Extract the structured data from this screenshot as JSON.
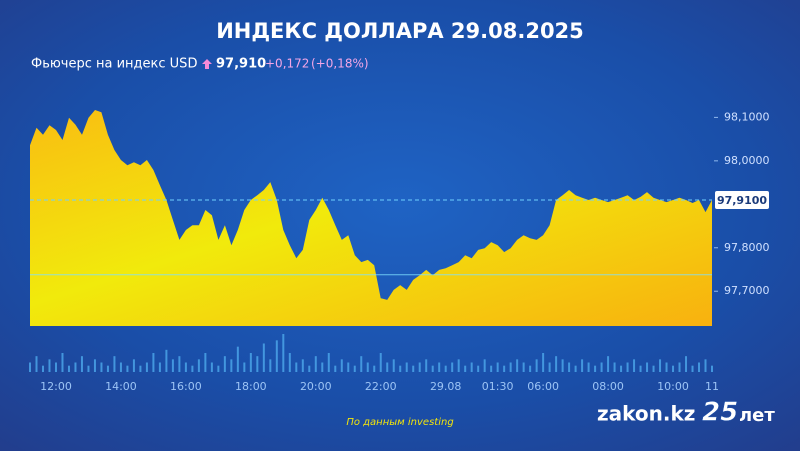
{
  "chart_data": {
    "type": "area",
    "title": "ИНДЕКС ДОЛЛАРА 29.08.2025",
    "subtitle": "Фьючерс на индекс USD",
    "price": "97,910",
    "change": "+0,172",
    "change_percent": "(+0,18%)",
    "source": "По данным investing",
    "brand": "zakon.kz",
    "brand_badge": "25",
    "brand_suffix": "лет",
    "categories": [
      null,
      null,
      null,
      null,
      "12:00",
      null,
      null,
      null,
      null,
      null,
      null,
      null,
      null,
      null,
      "14:00",
      null,
      null,
      null,
      null,
      null,
      null,
      null,
      null,
      null,
      "16:00",
      null,
      null,
      null,
      null,
      null,
      null,
      null,
      null,
      null,
      "18:00",
      null,
      null,
      null,
      null,
      null,
      null,
      null,
      null,
      null,
      "20:00",
      null,
      null,
      null,
      null,
      null,
      null,
      null,
      null,
      null,
      "22:00",
      null,
      null,
      null,
      null,
      null,
      null,
      null,
      null,
      null,
      "29.08",
      null,
      null,
      null,
      null,
      null,
      null,
      null,
      "01:30",
      null,
      null,
      null,
      null,
      null,
      null,
      "06:00",
      null,
      null,
      null,
      null,
      null,
      null,
      null,
      null,
      null,
      "08:00",
      null,
      null,
      null,
      null,
      null,
      null,
      null,
      null,
      null,
      "10:00",
      null,
      null,
      null,
      null,
      null,
      "11"
    ],
    "series": [
      {
        "name": "USD index futures",
        "color": "#f2e40c",
        "values": [
          98.036,
          98.076,
          98.06,
          98.082,
          98.071,
          98.048,
          98.099,
          98.083,
          98.06,
          98.099,
          98.117,
          98.112,
          98.06,
          98.025,
          98.002,
          97.99,
          97.997,
          97.99,
          98.002,
          97.979,
          97.944,
          97.91,
          97.864,
          97.818,
          97.841,
          97.852,
          97.852,
          97.887,
          97.875,
          97.818,
          97.852,
          97.806,
          97.841,
          97.887,
          97.91,
          97.921,
          97.933,
          97.951,
          97.91,
          97.841,
          97.806,
          97.776,
          97.795,
          97.864,
          97.887,
          97.915,
          97.887,
          97.852,
          97.818,
          97.829,
          97.783,
          97.767,
          97.772,
          97.76,
          97.684,
          97.68,
          97.703,
          97.714,
          97.703,
          97.726,
          97.737,
          97.749,
          97.737,
          97.749,
          97.753,
          97.76,
          97.767,
          97.783,
          97.776,
          97.795,
          97.799,
          97.813,
          97.806,
          97.79,
          97.799,
          97.818,
          97.829,
          97.822,
          97.818,
          97.829,
          97.852,
          97.91,
          97.921,
          97.933,
          97.921,
          97.915,
          97.91,
          97.915,
          97.91,
          97.905,
          97.91,
          97.915,
          97.921,
          97.91,
          97.917,
          97.928,
          97.915,
          97.91,
          97.905,
          97.91,
          97.915,
          97.91,
          97.903,
          97.91,
          97.882,
          97.91
        ]
      },
      {
        "name": "Volume",
        "color": "#4aa3e8",
        "axis": "volume",
        "values": [
          3,
          5,
          2,
          4,
          3,
          6,
          2,
          3,
          5,
          2,
          4,
          3,
          2,
          5,
          3,
          2,
          4,
          2,
          3,
          6,
          3,
          7,
          4,
          5,
          3,
          2,
          4,
          6,
          3,
          2,
          5,
          4,
          8,
          3,
          6,
          5,
          9,
          4,
          10,
          12,
          6,
          3,
          4,
          2,
          5,
          3,
          6,
          2,
          4,
          3,
          2,
          5,
          3,
          2,
          6,
          3,
          4,
          2,
          3,
          2,
          3,
          4,
          2,
          3,
          2,
          3,
          4,
          2,
          3,
          2,
          4,
          2,
          3,
          2,
          3,
          4,
          3,
          2,
          4,
          6,
          3,
          5,
          4,
          3,
          2,
          4,
          3,
          2,
          3,
          5,
          3,
          2,
          3,
          4,
          2,
          3,
          2,
          4,
          3,
          2,
          3,
          5,
          2,
          3,
          4,
          2
        ]
      }
    ],
    "ylim": [
      97.62,
      98.14
    ],
    "yticks": [
      {
        "value": 97.7,
        "label": "97,7000"
      },
      {
        "value": 97.8,
        "label": "97,8000"
      },
      {
        "value": 98.0,
        "label": "98,0000"
      },
      {
        "value": 98.1,
        "label": "98,1000"
      }
    ],
    "volume_lim": [
      0,
      12
    ],
    "current": {
      "value": 97.91,
      "label": "97,9100"
    },
    "previous_close": 97.738
  }
}
